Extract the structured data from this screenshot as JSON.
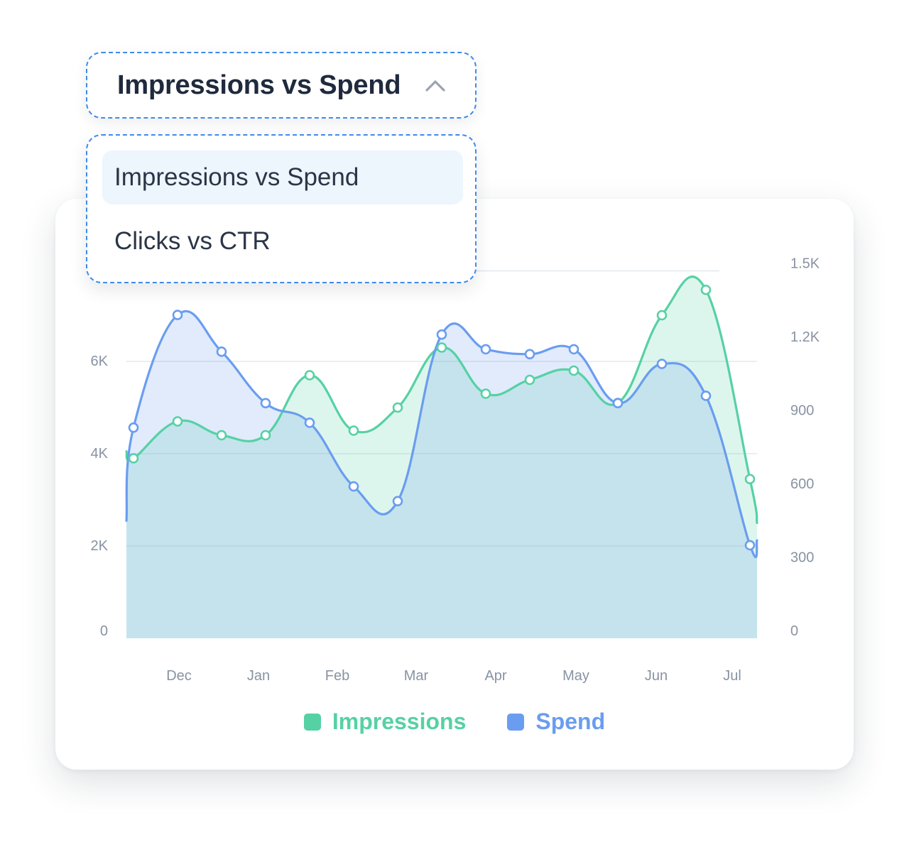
{
  "dropdown": {
    "selected_label": "Impressions vs Spend",
    "options": [
      {
        "label": "Impressions vs Spend",
        "selected": true
      },
      {
        "label": "Clicks vs CTR",
        "selected": false
      }
    ]
  },
  "colors": {
    "impressions": "#56d1a4",
    "spend": "#6a9df0",
    "accent": "#3d8bea"
  },
  "chart_data": {
    "type": "area",
    "x_tick_labels": [
      "Dec",
      "Jan",
      "Feb",
      "Mar",
      "Apr",
      "May",
      "Jun",
      "Jul"
    ],
    "left_axis": {
      "ticks": [
        "0",
        "2K",
        "4K",
        "6K"
      ],
      "range": [
        0,
        8200
      ]
    },
    "right_axis": {
      "ticks": [
        "0",
        "300",
        "600",
        "900",
        "1.2K",
        "1.5K"
      ],
      "range": [
        0,
        1550
      ]
    },
    "series": [
      {
        "name": "Impressions",
        "axis": "left",
        "values": [
          3900,
          4700,
          4400,
          4400,
          5700,
          4500,
          5000,
          6300,
          5300,
          5600,
          5800,
          5100,
          7000,
          7550,
          3450
        ]
      },
      {
        "name": "Spend",
        "axis": "right",
        "values": [
          860,
          1320,
          1170,
          960,
          880,
          620,
          560,
          1240,
          1180,
          1160,
          1180,
          960,
          1120,
          990,
          380
        ]
      }
    ],
    "legend": [
      "Impressions",
      "Spend"
    ],
    "legend_position": "bottom",
    "grid": "horizontal"
  }
}
